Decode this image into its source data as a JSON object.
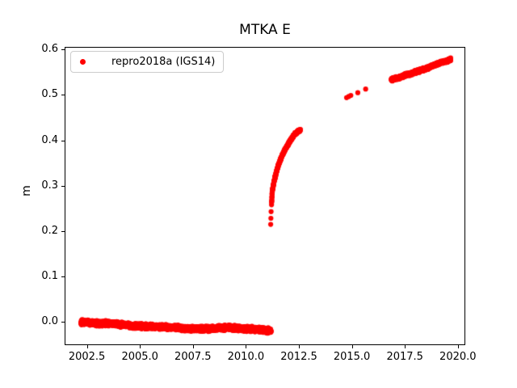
{
  "figure": {
    "background": "#ffffff",
    "accent_color": "#ff0000"
  },
  "chart_data": {
    "type": "scatter",
    "title": "MTKA E",
    "xlabel": "",
    "ylabel": "m",
    "xlim": [
      2001.45,
      2020.35
    ],
    "ylim": [
      -0.052,
      0.606
    ],
    "grid": false,
    "legend_position": "upper left",
    "xticks": {
      "values": [
        2002.5,
        2005.0,
        2007.5,
        2010.0,
        2012.5,
        2015.0,
        2017.5,
        2020.0
      ],
      "labels": [
        "2002.5",
        "2005.0",
        "2007.5",
        "2010.0",
        "2012.5",
        "2015.0",
        "2017.5",
        "2020.0"
      ]
    },
    "yticks": {
      "values": [
        0.0,
        0.1,
        0.2,
        0.3,
        0.4,
        0.5,
        0.6
      ],
      "labels": [
        "0.0",
        "0.1",
        "0.2",
        "0.3",
        "0.4",
        "0.5",
        "0.6"
      ]
    },
    "legend": {
      "label": "repro2018a (IGS14)",
      "marker_color": "#ff0000",
      "marker": "dot"
    },
    "series": [
      {
        "name": "repro2018a (IGS14)",
        "color": "#ff0000",
        "marker": "dot",
        "marker_radius_px": 3.1,
        "segments": [
          {
            "kind": "dense",
            "noise": 0.0024,
            "step": 0.003,
            "anchors": [
              [
                2002.22,
                -0.001
              ],
              [
                2002.6,
                -0.0025
              ],
              [
                2003.0,
                -0.004
              ],
              [
                2003.4,
                -0.004
              ],
              [
                2003.8,
                -0.005
              ],
              [
                2004.2,
                -0.007
              ],
              [
                2004.6,
                -0.0095
              ],
              [
                2005.0,
                -0.01
              ],
              [
                2005.4,
                -0.0105
              ],
              [
                2005.9,
                -0.011
              ],
              [
                2006.4,
                -0.013
              ],
              [
                2006.9,
                -0.014
              ],
              [
                2007.3,
                -0.0155
              ],
              [
                2007.7,
                -0.016
              ],
              [
                2008.1,
                -0.016
              ],
              [
                2008.6,
                -0.015
              ],
              [
                2009.1,
                -0.0135
              ],
              [
                2009.6,
                -0.0145
              ],
              [
                2010.1,
                -0.016
              ],
              [
                2010.5,
                -0.017
              ],
              [
                2010.9,
                -0.0185
              ],
              [
                2011.19,
                -0.021
              ]
            ]
          },
          {
            "kind": "points",
            "points": [
              [
                2011.17,
                0.2145
              ],
              [
                2011.18,
                0.228
              ],
              [
                2011.19,
                0.2425
              ]
            ]
          },
          {
            "kind": "dense",
            "noise": 0.0012,
            "step": 0.003,
            "anchors": [
              [
                2011.21,
                0.258
              ],
              [
                2011.24,
                0.285
              ],
              [
                2011.3,
                0.302
              ],
              [
                2011.37,
                0.317
              ],
              [
                2011.44,
                0.33
              ],
              [
                2011.52,
                0.343
              ],
              [
                2011.61,
                0.355
              ],
              [
                2011.69,
                0.364
              ],
              [
                2011.79,
                0.374
              ],
              [
                2011.88,
                0.382
              ],
              [
                2011.98,
                0.39
              ],
              [
                2012.07,
                0.397
              ],
              [
                2012.17,
                0.404
              ],
              [
                2012.26,
                0.411
              ],
              [
                2012.36,
                0.416
              ],
              [
                2012.46,
                0.42
              ],
              [
                2012.57,
                0.423
              ]
            ]
          },
          {
            "kind": "points",
            "points": [
              [
                2014.75,
                0.494
              ],
              [
                2014.85,
                0.4965
              ],
              [
                2014.95,
                0.499
              ],
              [
                2015.28,
                0.505
              ],
              [
                2015.65,
                0.513
              ]
            ]
          },
          {
            "kind": "dense",
            "noise": 0.0015,
            "step": 0.003,
            "anchors": [
              [
                2016.86,
                0.534
              ],
              [
                2017.0,
                0.5355
              ],
              [
                2017.15,
                0.5375
              ],
              [
                2017.3,
                0.5395
              ],
              [
                2017.45,
                0.5425
              ],
              [
                2017.6,
                0.5445
              ],
              [
                2017.75,
                0.546
              ],
              [
                2017.9,
                0.549
              ],
              [
                2018.05,
                0.5515
              ],
              [
                2018.2,
                0.5535
              ],
              [
                2018.35,
                0.556
              ],
              [
                2018.5,
                0.5585
              ],
              [
                2018.65,
                0.561
              ],
              [
                2018.8,
                0.564
              ],
              [
                2018.95,
                0.567
              ],
              [
                2019.1,
                0.5695
              ],
              [
                2019.25,
                0.572
              ],
              [
                2019.4,
                0.574
              ],
              [
                2019.55,
                0.576
              ],
              [
                2019.66,
                0.578
              ]
            ]
          }
        ]
      }
    ]
  }
}
